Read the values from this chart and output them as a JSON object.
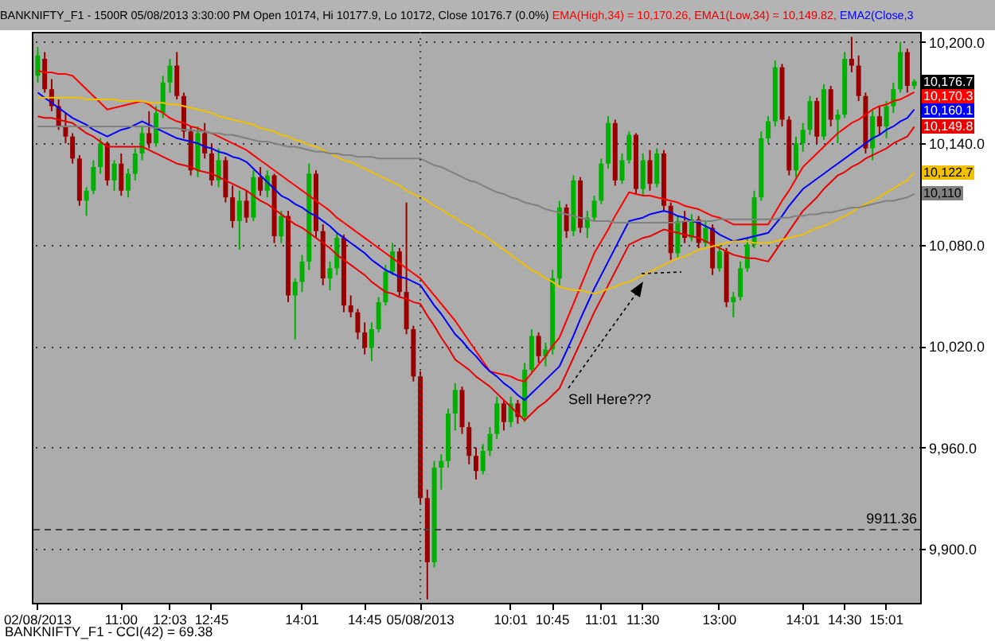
{
  "chart_data": {
    "type": "candlestick",
    "title": "BANKNIFTY_F1 - 1500R 05/08/2013 3:30:00 PM Open 10174, Hi 10177.9, Lo 10172, Close 10176.7 (0.0%)",
    "categories": [
      "02/08/2013",
      null,
      null,
      null,
      null,
      null,
      null,
      null,
      null,
      null,
      null,
      null,
      "11:00",
      null,
      null,
      null,
      null,
      null,
      null,
      "12:03",
      null,
      null,
      null,
      null,
      null,
      "12:45",
      null,
      null,
      null,
      null,
      null,
      null,
      null,
      null,
      null,
      null,
      null,
      null,
      "14:01",
      null,
      null,
      null,
      null,
      null,
      null,
      null,
      null,
      "14:45",
      null,
      null,
      null,
      null,
      null,
      null,
      null,
      "05/08/2013",
      null,
      null,
      null,
      null,
      null,
      null,
      null,
      null,
      null,
      null,
      null,
      null,
      "10:01",
      null,
      null,
      null,
      null,
      null,
      "10:45",
      null,
      null,
      null,
      null,
      null,
      null,
      "11:01",
      null,
      null,
      null,
      null,
      null,
      "11:30",
      null,
      null,
      null,
      null,
      null,
      null,
      null,
      null,
      null,
      null,
      "13:00",
      null,
      null,
      null,
      null,
      null,
      null,
      null,
      null,
      null,
      null,
      null,
      "14:01",
      null,
      null,
      null,
      null,
      null,
      "14:30",
      null,
      null,
      null,
      null,
      null,
      "15:01",
      null,
      null,
      null,
      null
    ],
    "ohlc": [
      [
        10180,
        10197,
        10176,
        10192
      ],
      [
        10190,
        10194,
        10170,
        10172
      ],
      [
        10172,
        10178,
        10159,
        10162
      ],
      [
        10162,
        10166,
        10148,
        10150
      ],
      [
        10150,
        10158,
        10140,
        10144
      ],
      [
        10144,
        10146,
        10128,
        10131
      ],
      [
        10131,
        10133,
        10103,
        10106
      ],
      [
        10106,
        10114,
        10097,
        10112
      ],
      [
        10112,
        10130,
        10110,
        10126
      ],
      [
        10126,
        10143,
        10122,
        10140
      ],
      [
        10140,
        10141,
        10115,
        10118
      ],
      [
        10118,
        10130,
        10112,
        10128
      ],
      [
        10128,
        10134,
        10109,
        10112
      ],
      [
        10112,
        10125,
        10108,
        10122
      ],
      [
        10122,
        10137,
        10118,
        10134
      ],
      [
        10134,
        10150,
        10130,
        10146
      ],
      [
        10146,
        10159,
        10137,
        10140
      ],
      [
        10140,
        10162,
        10138,
        10158
      ],
      [
        10158,
        10180,
        10155,
        10176
      ],
      [
        10176,
        10190,
        10170,
        10186
      ],
      [
        10186,
        10194,
        10166,
        10168
      ],
      [
        10168,
        10170,
        10143,
        10147
      ],
      [
        10147,
        10150,
        10121,
        10124
      ],
      [
        10124,
        10150,
        10120,
        10146
      ],
      [
        10146,
        10152,
        10131,
        10134
      ],
      [
        10134,
        10140,
        10115,
        10118
      ],
      [
        10118,
        10137,
        10114,
        10130
      ],
      [
        10130,
        10132,
        10105,
        10108
      ],
      [
        10108,
        10115,
        10090,
        10094
      ],
      [
        10094,
        10112,
        10077,
        10106
      ],
      [
        10106,
        10112,
        10093,
        10096
      ],
      [
        10096,
        10124,
        10094,
        10120
      ],
      [
        10120,
        10126,
        10109,
        10112
      ],
      [
        10112,
        10124,
        10108,
        10121
      ],
      [
        10121,
        10122,
        10081,
        10085
      ],
      [
        10085,
        10100,
        10081,
        10097
      ],
      [
        10097,
        10100,
        10046,
        10050
      ],
      [
        10050,
        10060,
        10024,
        10058
      ],
      [
        10058,
        10074,
        10052,
        10070
      ],
      [
        10070,
        10128,
        10065,
        10122
      ],
      [
        10122,
        10124,
        10084,
        10088
      ],
      [
        10088,
        10092,
        10056,
        10060
      ],
      [
        10060,
        10070,
        10053,
        10066
      ],
      [
        10066,
        10087,
        10062,
        10084
      ],
      [
        10084,
        10086,
        10040,
        10044
      ],
      [
        10044,
        10050,
        10037,
        10040
      ],
      [
        10040,
        10042,
        10024,
        10028
      ],
      [
        10028,
        10034,
        10015,
        10019
      ],
      [
        10019,
        10034,
        10011,
        10030
      ],
      [
        10030,
        10049,
        10028,
        10046
      ],
      [
        10046,
        10068,
        10044,
        10064
      ],
      [
        10064,
        10081,
        10062,
        10076
      ],
      [
        10076,
        10078,
        10049,
        10052
      ],
      [
        10052,
        10105,
        10027,
        10030
      ],
      [
        10030,
        10032,
        9999,
        10002
      ],
      [
        10002,
        10005,
        9926,
        9930
      ],
      [
        9930,
        9935,
        9870,
        9892
      ],
      [
        9892,
        9952,
        9889,
        9948
      ],
      [
        9948,
        9956,
        9935,
        9952
      ],
      [
        9952,
        9983,
        9948,
        9980
      ],
      [
        9980,
        9998,
        9970,
        9994
      ],
      [
        9994,
        9996,
        9968,
        9972
      ],
      [
        9972,
        9975,
        9950,
        9955
      ],
      [
        9955,
        9960,
        9941,
        9946
      ],
      [
        9946,
        9962,
        9944,
        9958
      ],
      [
        9958,
        9972,
        9955,
        9968
      ],
      [
        9968,
        9990,
        9965,
        9986
      ],
      [
        9986,
        9988,
        9970,
        9975
      ],
      [
        9975,
        9990,
        9972,
        9986
      ],
      [
        9986,
        9988,
        9974,
        9978
      ],
      [
        9978,
        10010,
        9975,
        10006
      ],
      [
        10006,
        10030,
        10004,
        10026
      ],
      [
        10026,
        10028,
        10010,
        10014
      ],
      [
        10014,
        10022,
        10008,
        10018
      ],
      [
        10018,
        10065,
        10015,
        10060
      ],
      [
        10060,
        10106,
        10056,
        10102
      ],
      [
        10102,
        10104,
        10084,
        10088
      ],
      [
        10088,
        10121,
        10085,
        10118
      ],
      [
        10118,
        10120,
        10087,
        10090
      ],
      [
        10090,
        10100,
        10084,
        10096
      ],
      [
        10096,
        10109,
        10094,
        10106
      ],
      [
        10106,
        10131,
        10104,
        10128
      ],
      [
        10128,
        10156,
        10125,
        10152
      ],
      [
        10152,
        10154,
        10115,
        10118
      ],
      [
        10118,
        10134,
        10116,
        10130
      ],
      [
        10130,
        10147,
        10128,
        10145
      ],
      [
        10145,
        10146,
        10110,
        10113
      ],
      [
        10113,
        10134,
        10109,
        10130
      ],
      [
        10130,
        10136,
        10112,
        10116
      ],
      [
        10116,
        10137,
        10114,
        10134
      ],
      [
        10134,
        10136,
        10100,
        10103
      ],
      [
        10103,
        10105,
        10071,
        10075
      ],
      [
        10075,
        10097,
        10072,
        10094
      ],
      [
        10094,
        10100,
        10081,
        10084
      ],
      [
        10084,
        10098,
        10082,
        10095
      ],
      [
        10095,
        10097,
        10078,
        10081
      ],
      [
        10081,
        10094,
        10079,
        10090
      ],
      [
        10090,
        10092,
        10062,
        10066
      ],
      [
        10066,
        10080,
        10064,
        10076
      ],
      [
        10076,
        10078,
        10043,
        10046
      ],
      [
        10046,
        10052,
        10037,
        10049
      ],
      [
        10049,
        10070,
        10047,
        10066
      ],
      [
        10066,
        10084,
        10064,
        10080
      ],
      [
        10080,
        10112,
        10078,
        10108
      ],
      [
        10108,
        10147,
        10106,
        10143
      ],
      [
        10143,
        10156,
        10140,
        10153
      ],
      [
        10153,
        10189,
        10150,
        10185
      ],
      [
        10185,
        10187,
        10150,
        10154
      ],
      [
        10154,
        10156,
        10121,
        10124
      ],
      [
        10124,
        10144,
        10120,
        10140
      ],
      [
        10140,
        10152,
        10135,
        10148
      ],
      [
        10148,
        10168,
        10145,
        10165
      ],
      [
        10165,
        10167,
        10140,
        10144
      ],
      [
        10144,
        10175,
        10142,
        10172
      ],
      [
        10172,
        10174,
        10150,
        10154
      ],
      [
        10154,
        10160,
        10140,
        10157
      ],
      [
        10157,
        10194,
        10155,
        10190
      ],
      [
        10190,
        10203,
        10182,
        10186
      ],
      [
        10186,
        10192,
        10165,
        10168
      ],
      [
        10168,
        10170,
        10134,
        10137
      ],
      [
        10137,
        10160,
        10130,
        10156
      ],
      [
        10156,
        10162,
        10145,
        10150
      ],
      [
        10150,
        10165,
        10143,
        10162
      ],
      [
        10162,
        10176,
        10158,
        10172
      ],
      [
        10172,
        10200,
        10170,
        10194
      ],
      [
        10194,
        10196,
        10170,
        10174
      ],
      [
        10174,
        10177.9,
        10172,
        10176.7
      ]
    ],
    "colors": [
      "#00b000",
      "#990000",
      "#990000",
      "#990000",
      "#990000",
      "#990000",
      "#990000",
      "#00b000",
      "#00b000",
      "#00b000",
      "#990000",
      "#00b000",
      "#990000",
      "#00b000",
      "#00b000",
      "#00b000",
      "#990000",
      "#00b000",
      "#00b000",
      "#00b000",
      "#990000",
      "#990000",
      "#990000",
      "#00b000",
      "#990000",
      "#990000",
      "#00b000",
      "#990000",
      "#990000",
      "#00b000",
      "#990000",
      "#00b000",
      "#990000",
      "#00b000",
      "#990000",
      "#00b000",
      "#990000",
      "#00b000",
      "#00b000",
      "#00b000",
      "#990000",
      "#990000",
      "#00b000",
      "#00b000",
      "#990000",
      "#990000",
      "#990000",
      "#990000",
      "#00b000",
      "#00b000",
      "#00b000",
      "#00b000",
      "#990000",
      "#990000",
      "#990000",
      "#990000",
      "#990000",
      "#00b000",
      "#00b000",
      "#00b000",
      "#00b000",
      "#990000",
      "#990000",
      "#990000",
      "#00b000",
      "#00b000",
      "#00b000",
      "#990000",
      "#00b000",
      "#990000",
      "#00b000",
      "#00b000",
      "#990000",
      "#00b000",
      "#00b000",
      "#00b000",
      "#990000",
      "#00b000",
      "#990000",
      "#00b000",
      "#00b000",
      "#00b000",
      "#00b000",
      "#990000",
      "#00b000",
      "#00b000",
      "#990000",
      "#00b000",
      "#990000",
      "#00b000",
      "#990000",
      "#990000",
      "#00b000",
      "#990000",
      "#00b000",
      "#990000",
      "#00b000",
      "#990000",
      "#00b000",
      "#990000",
      "#00b000",
      "#00b000",
      "#00b000",
      "#00b000",
      "#00b000",
      "#00b000",
      "#00b000",
      "#990000",
      "#990000",
      "#00b000",
      "#00b000",
      "#00b000",
      "#990000",
      "#00b000",
      "#990000",
      "#00b000",
      "#00b000",
      "#990000",
      "#990000",
      "#990000",
      "#00b000",
      "#990000",
      "#00b000",
      "#00b000",
      "#00b000",
      "#990000",
      "#00b000"
    ],
    "value_labels": [
      null,
      null,
      null,
      null,
      null,
      null,
      null,
      null,
      null,
      null,
      null,
      null,
      null,
      null,
      null,
      null,
      null,
      null,
      null,
      null,
      null,
      null,
      null,
      null,
      null,
      null,
      null,
      null,
      null,
      null,
      null,
      null,
      null,
      null,
      null,
      null,
      null,
      null,
      null,
      null,
      null,
      null,
      null,
      null,
      null,
      null,
      null,
      null,
      null,
      null,
      null,
      null,
      null,
      null,
      null,
      null,
      null,
      null,
      null,
      null,
      null,
      null,
      null,
      null,
      null,
      null,
      null,
      null,
      null,
      null,
      null,
      null,
      null,
      null,
      null,
      null,
      null,
      null,
      null,
      null,
      null,
      null,
      null,
      null,
      null,
      null,
      null,
      null,
      null,
      null,
      null,
      null,
      null,
      null,
      null,
      null,
      null,
      null,
      null,
      null,
      null,
      null,
      null,
      null,
      null,
      null,
      null,
      null,
      null,
      null,
      null,
      null,
      null,
      null,
      null,
      null,
      null,
      null,
      null,
      null,
      null,
      null,
      null,
      null,
      null,
      null,
      "10,176.7"
    ],
    "series": [
      {
        "type": "line",
        "name": "EMA(High,34) = 10,170.26,",
        "color": "#ff0000",
        "value_labels": [
          null,
          null,
          null,
          null,
          null,
          null,
          null,
          null,
          null,
          null,
          null,
          null,
          null,
          null,
          null,
          null,
          null,
          null,
          null,
          null,
          null,
          null,
          null,
          null,
          null,
          null,
          null,
          null,
          null,
          null,
          null,
          null,
          null,
          null,
          null,
          null,
          null,
          null,
          null,
          null,
          null,
          null,
          null,
          null,
          null,
          null,
          null,
          null,
          null,
          null,
          null,
          null,
          null,
          null,
          null,
          null,
          null,
          null,
          null,
          null,
          null,
          null,
          null,
          null,
          null,
          null,
          null,
          null,
          null,
          null,
          null,
          null,
          null,
          null,
          null,
          null,
          null,
          null,
          null,
          null,
          null,
          null,
          null,
          null,
          null,
          null,
          null,
          null,
          null,
          null,
          null,
          null,
          null,
          null,
          null,
          null,
          null,
          null,
          null,
          null,
          null,
          null,
          null,
          null,
          null,
          null,
          null,
          null,
          null,
          null,
          null,
          null,
          null,
          null,
          null,
          null,
          null,
          null,
          null,
          null,
          null,
          null,
          null,
          null,
          null,
          null,
          "10,170.3"
        ],
        "values": [
          10183,
          10182,
          10182,
          10181,
          10181,
          10180,
          10176,
          10172,
          10168,
          10164,
          10160,
          10161,
          10162,
          10163,
          10164,
          10165,
          10163,
          10160,
          10158,
          10155,
          10153,
          10152,
          10150,
          10149,
          10147,
          10146,
          10144,
          10142,
          10140,
          10138,
          10136,
          10133,
          10130,
          10127,
          10124,
          10121,
          10118,
          10115,
          10112,
          10109,
          10106,
          10103,
          10100,
          10096,
          10093,
          10090,
          10087,
          10084,
          10081,
          10078,
          10075,
          10072,
          10069,
          10066,
          10063,
          10060,
          10055,
          10050,
          10045,
          10040,
          10035,
          10029,
          10023,
          10017,
          10011,
          10005,
          10004,
          10003,
          10002,
          10000,
          9999,
          10004,
          10009,
          10014,
          10020,
          10025,
          10035,
          10045,
          10055,
          10065,
          10075,
          10082,
          10089,
          10097,
          10104,
          10111,
          10110,
          10109,
          10109,
          10108,
          10107,
          10106,
          10105,
          10103,
          10102,
          10101,
          10099,
          10097,
          10096,
          10094,
          10092,
          10092,
          10092,
          10092,
          10092,
          10092,
          10099,
          10106,
          10112,
          10119,
          10126,
          10130,
          10134,
          10138,
          10142,
          10146,
          10149,
          10152,
          10154,
          10157,
          10160,
          10162,
          10163,
          10165,
          10166,
          10168,
          10170.3
        ]
      },
      {
        "type": "line",
        "name": "EMA1(Low,34) = 10,149.82,",
        "color": "#e80000",
        "value_labels": [
          null,
          null,
          null,
          null,
          null,
          null,
          null,
          null,
          null,
          null,
          null,
          null,
          null,
          null,
          null,
          null,
          null,
          null,
          null,
          null,
          null,
          null,
          null,
          null,
          null,
          null,
          null,
          null,
          null,
          null,
          null,
          null,
          null,
          null,
          null,
          null,
          null,
          null,
          null,
          null,
          null,
          null,
          null,
          null,
          null,
          null,
          null,
          null,
          null,
          null,
          null,
          null,
          null,
          null,
          null,
          null,
          null,
          null,
          null,
          null,
          null,
          null,
          null,
          null,
          null,
          null,
          null,
          null,
          null,
          null,
          null,
          null,
          null,
          null,
          null,
          null,
          null,
          null,
          null,
          null,
          null,
          null,
          null,
          null,
          null,
          null,
          null,
          null,
          null,
          null,
          null,
          null,
          null,
          null,
          null,
          null,
          null,
          null,
          null,
          null,
          null,
          null,
          null,
          null,
          null,
          null,
          null,
          null,
          null,
          null,
          null,
          null,
          null,
          null,
          null,
          null,
          null,
          null,
          null,
          null,
          null,
          null,
          null,
          null,
          null,
          null,
          "10,149.8"
        ],
        "values": [
          10156,
          10155,
          10155,
          10154,
          10153,
          10152,
          10149,
          10146,
          10144,
          10141,
          10138,
          10138,
          10138,
          10138,
          10138,
          10138,
          10136,
          10134,
          10132,
          10130,
          10128,
          10127,
          10126,
          10124,
          10123,
          10122,
          10120,
          10118,
          10116,
          10114,
          10112,
          10109,
          10106,
          10104,
          10101,
          10098,
          10095,
          10092,
          10090,
          10087,
          10084,
          10081,
          10078,
          10074,
          10071,
          10068,
          10065,
          10062,
          10058,
          10055,
          10052,
          10051,
          10049,
          10048,
          10046,
          10045,
          10038,
          10032,
          10025,
          10019,
          10012,
          10009,
          10006,
          10002,
          9999,
          9996,
          9992,
          9988,
          9984,
          9980,
          9976,
          9980,
          9984,
          9987,
          9991,
          9995,
          10004,
          10013,
          10022,
          10031,
          10040,
          10048,
          10056,
          10064,
          10072,
          10080,
          10082,
          10084,
          10085,
          10087,
          10089,
          10088,
          10087,
          10086,
          10085,
          10084,
          10082,
          10080,
          10078,
          10076,
          10074,
          10073,
          10072,
          10072,
          10071,
          10070,
          10076,
          10082,
          10088,
          10094,
          10100,
          10104,
          10108,
          10113,
          10117,
          10121,
          10123,
          10126,
          10128,
          10131,
          10133,
          10135,
          10137,
          10140,
          10142,
          10144,
          10149.8
        ]
      },
      {
        "type": "line",
        "name": "EMA2(Close,3",
        "color": "#0000ff",
        "value_labels": [
          null,
          null,
          null,
          null,
          null,
          null,
          null,
          null,
          null,
          null,
          null,
          null,
          null,
          null,
          null,
          null,
          null,
          null,
          null,
          null,
          null,
          null,
          null,
          null,
          null,
          null,
          null,
          null,
          null,
          null,
          null,
          null,
          null,
          null,
          null,
          null,
          null,
          null,
          null,
          null,
          null,
          null,
          null,
          null,
          null,
          null,
          null,
          null,
          null,
          null,
          null,
          null,
          null,
          null,
          null,
          null,
          null,
          null,
          null,
          null,
          null,
          null,
          null,
          null,
          null,
          null,
          null,
          null,
          null,
          null,
          null,
          null,
          null,
          null,
          null,
          null,
          null,
          null,
          null,
          null,
          null,
          null,
          null,
          null,
          null,
          null,
          null,
          null,
          null,
          null,
          null,
          null,
          null,
          null,
          null,
          null,
          null,
          null,
          null,
          null,
          null,
          null,
          null,
          null,
          null,
          null,
          null,
          null,
          null,
          null,
          null,
          null,
          null,
          null,
          null,
          null,
          null,
          null,
          null,
          null,
          null,
          null,
          null,
          null,
          null,
          null,
          "10,160.1"
        ],
        "values": [
          10170,
          10167,
          10164,
          10161,
          10158,
          10155,
          10153,
          10151,
          10148,
          10146,
          10144,
          10146,
          10148,
          10149,
          10151,
          10153,
          10151,
          10149,
          10147,
          10145,
          10143,
          10142,
          10141,
          10140,
          10138,
          10137,
          10135,
          10134,
          10132,
          10131,
          10129,
          10125,
          10121,
          10117,
          10113,
          10109,
          10107,
          10104,
          10102,
          10099,
          10097,
          10094,
          10091,
          10087,
          10084,
          10081,
          10078,
          10075,
          10071,
          10068,
          10065,
          10063,
          10061,
          10060,
          10058,
          10056,
          10050,
          10044,
          10039,
          10033,
          10027,
          10023,
          10018,
          10014,
          10009,
          10005,
          10002,
          9998,
          9995,
          9991,
          9988,
          9992,
          9996,
          10000,
          10004,
          10008,
          10017,
          10026,
          10036,
          10045,
          10054,
          10062,
          10070,
          10078,
          10086,
          10094,
          10095,
          10096,
          10098,
          10099,
          10100,
          10099,
          10097,
          10096,
          10094,
          10093,
          10091,
          10089,
          10086,
          10084,
          10082,
          10083,
          10084,
          10085,
          10086,
          10087,
          10092,
          10097,
          10103,
          10108,
          10113,
          10116,
          10119,
          10122,
          10125,
          10128,
          10131,
          10134,
          10137,
          10140,
          10143,
          10145,
          10148,
          10150,
          10153,
          10155,
          10160.1
        ]
      },
      {
        "type": "line",
        "color": "#f0c000",
        "value_labels": [
          null,
          null,
          null,
          null,
          null,
          null,
          null,
          null,
          null,
          null,
          null,
          null,
          null,
          null,
          null,
          null,
          null,
          null,
          null,
          null,
          null,
          null,
          null,
          null,
          null,
          null,
          null,
          null,
          null,
          null,
          null,
          null,
          null,
          null,
          null,
          null,
          null,
          null,
          null,
          null,
          null,
          null,
          null,
          null,
          null,
          null,
          null,
          null,
          null,
          null,
          null,
          null,
          null,
          null,
          null,
          null,
          null,
          null,
          null,
          null,
          null,
          null,
          null,
          null,
          null,
          null,
          null,
          null,
          null,
          null,
          null,
          null,
          null,
          null,
          null,
          null,
          null,
          null,
          null,
          null,
          null,
          null,
          null,
          null,
          null,
          null,
          null,
          null,
          null,
          null,
          null,
          null,
          null,
          null,
          null,
          null,
          null,
          null,
          null,
          null,
          null,
          null,
          null,
          null,
          null,
          null,
          null,
          null,
          null,
          null,
          null,
          null,
          null,
          null,
          null,
          null,
          null,
          null,
          null,
          null,
          null,
          null,
          null,
          null,
          null,
          null,
          "10,122.7"
        ],
        "values": [
          10167,
          10167,
          10167,
          10167,
          10167,
          10167,
          10167,
          10166,
          10166,
          10166,
          10166,
          10166,
          10165,
          10165,
          10165,
          10165,
          10164,
          10164,
          10164,
          10163,
          10163,
          10162,
          10161,
          10160,
          10159,
          10158,
          10156,
          10155,
          10154,
          10153,
          10152,
          10151,
          10149,
          10148,
          10147,
          10145,
          10144,
          10142,
          10141,
          10139,
          10138,
          10136,
          10134,
          10132,
          10130,
          10129,
          10127,
          10125,
          10123,
          10121,
          10119,
          10117,
          10115,
          10112,
          10110,
          10108,
          10106,
          10103,
          10101,
          10098,
          10096,
          10093,
          10091,
          10088,
          10086,
          10083,
          10080,
          10077,
          10074,
          10071,
          10068,
          10065,
          10063,
          10060,
          10058,
          10055,
          10054,
          10053,
          10053,
          10052,
          10051,
          10052,
          10054,
          10055,
          10057,
          10058,
          10060,
          10062,
          10064,
          10066,
          10068,
          10070,
          10072,
          10073,
          10075,
          10077,
          10078,
          10079,
          10080,
          10081,
          10082,
          10082,
          10082,
          10081,
          10081,
          10081,
          10082,
          10083,
          10084,
          10085,
          10086,
          10088,
          10090,
          10091,
          10093,
          10095,
          10097,
          10099,
          10102,
          10104,
          10106,
          10108,
          10111,
          10113,
          10116,
          10118,
          10122.7
        ]
      },
      {
        "type": "line",
        "color": "#808080",
        "value_labels": [
          null,
          null,
          null,
          null,
          null,
          null,
          null,
          null,
          null,
          null,
          null,
          null,
          null,
          null,
          null,
          null,
          null,
          null,
          null,
          null,
          null,
          null,
          null,
          null,
          null,
          null,
          null,
          null,
          null,
          null,
          null,
          null,
          null,
          null,
          null,
          null,
          null,
          null,
          null,
          null,
          null,
          null,
          null,
          null,
          null,
          null,
          null,
          null,
          null,
          null,
          null,
          null,
          null,
          null,
          null,
          null,
          null,
          null,
          null,
          null,
          null,
          null,
          null,
          null,
          null,
          null,
          null,
          null,
          null,
          null,
          null,
          null,
          null,
          null,
          null,
          null,
          null,
          null,
          null,
          null,
          null,
          null,
          null,
          null,
          null,
          null,
          null,
          null,
          null,
          null,
          null,
          null,
          null,
          null,
          null,
          null,
          null,
          null,
          null,
          null,
          null,
          null,
          null,
          null,
          null,
          null,
          null,
          null,
          null,
          null,
          null,
          null,
          null,
          null,
          null,
          null,
          null,
          null,
          null,
          null,
          null,
          null,
          null,
          null,
          null,
          null,
          "10,110"
        ],
        "values": [
          10150,
          10150,
          10150,
          10150,
          10150,
          10150,
          10150,
          10150,
          10150,
          10150,
          10150,
          10150,
          10150,
          10150,
          10150,
          10150,
          10150,
          10149,
          10149,
          10149,
          10149,
          10148,
          10148,
          10147,
          10147,
          10146,
          10146,
          10145,
          10145,
          10144,
          10143,
          10142,
          10141,
          10141,
          10140,
          10139,
          10138,
          10138,
          10137,
          10136,
          10135,
          10135,
          10134,
          10134,
          10133,
          10133,
          10132,
          10132,
          10132,
          10131,
          10131,
          10131,
          10131,
          10131,
          10131,
          10131,
          10129,
          10127,
          10126,
          10124,
          10122,
          10120,
          10118,
          10117,
          10115,
          10113,
          10111,
          10110,
          10108,
          10107,
          10105,
          10104,
          10103,
          10101,
          10100,
          10099,
          10098,
          10097,
          10096,
          10095,
          10094,
          10094,
          10094,
          10093,
          10093,
          10093,
          10093,
          10093,
          10093,
          10093,
          10093,
          10093,
          10093,
          10094,
          10094,
          10094,
          10094,
          10094,
          10095,
          10095,
          10095,
          10095,
          10095,
          10095,
          10095,
          10095,
          10095,
          10096,
          10096,
          10097,
          10097,
          10098,
          10098,
          10099,
          10099,
          10100,
          10101,
          10102,
          10102,
          10103,
          10104,
          10105,
          10106,
          10106,
          10107,
          10108,
          10110
        ]
      }
    ],
    "ylim": [
      9868,
      10206
    ],
    "yticks": [
      {
        "value": 9900,
        "label": "9,900.0"
      },
      {
        "value": 9960,
        "label": "9,960.0"
      },
      {
        "value": 10020,
        "label": "10,020.0"
      },
      {
        "value": 10080,
        "label": "10,080.0"
      },
      {
        "value": 10140,
        "label": "10,140.0"
      },
      {
        "value": 10200,
        "label": "10,200.0"
      }
    ],
    "grid": "y",
    "legend": "top",
    "ref_lines": [
      {
        "axis": "y",
        "value": 9911.36,
        "label": "9911.36",
        "line_style": "dashed",
        "color": "#404040"
      },
      {
        "axis": "x",
        "value": "05/08/2013",
        "line_style": "dotted",
        "color": "#404040"
      }
    ],
    "annotations": [
      "Sell Here???",
      "BANKNIFTY_F1 - CCI(42) = 69.38"
    ]
  }
}
